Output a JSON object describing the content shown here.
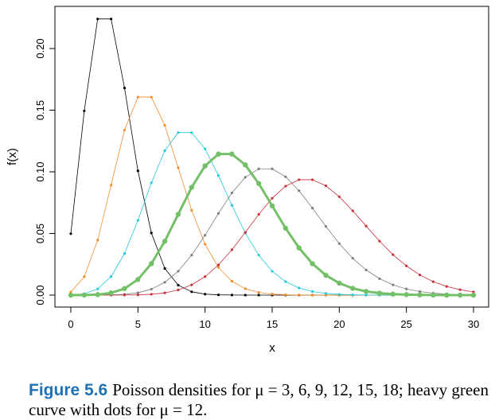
{
  "chart_data": {
    "type": "line",
    "title": "",
    "xlabel": "x",
    "ylabel": "f(x)",
    "xlim": [
      0,
      30
    ],
    "ylim": [
      0,
      0.23
    ],
    "x": [
      0,
      1,
      2,
      3,
      4,
      5,
      6,
      7,
      8,
      9,
      10,
      11,
      12,
      13,
      14,
      15,
      16,
      17,
      18,
      19,
      20,
      21,
      22,
      23,
      24,
      25,
      26,
      27,
      28,
      29,
      30
    ],
    "xticks": [
      0,
      5,
      10,
      15,
      20,
      25,
      30
    ],
    "xtick_labels": [
      "0",
      "5",
      "10",
      "15",
      "20",
      "25",
      "30"
    ],
    "yticks": [
      0.0,
      0.05,
      0.1,
      0.15,
      0.2
    ],
    "ytick_labels": [
      "0.00",
      "0.05",
      "0.10",
      "0.15",
      "0.20"
    ],
    "grid": false,
    "series": [
      {
        "name": "mu = 3",
        "mu": 3,
        "color": "#000000",
        "heavy": false,
        "values": [
          0.0498,
          0.1494,
          0.224,
          0.224,
          0.168,
          0.1008,
          0.0504,
          0.0216,
          0.0081,
          0.0027,
          0.0008,
          0.0002,
          0.0001,
          0,
          0,
          0,
          0,
          0,
          0,
          0,
          0,
          0,
          0,
          0,
          0,
          0,
          0,
          0,
          0,
          0,
          0
        ]
      },
      {
        "name": "mu = 6",
        "mu": 6,
        "color": "#f28e2b",
        "heavy": false,
        "values": [
          0.0025,
          0.0149,
          0.0446,
          0.0892,
          0.1339,
          0.1606,
          0.1606,
          0.1377,
          0.1033,
          0.0688,
          0.0413,
          0.0225,
          0.0113,
          0.0052,
          0.0022,
          0.0009,
          0.0003,
          0.0001,
          0,
          0,
          0,
          0,
          0,
          0,
          0,
          0,
          0,
          0,
          0,
          0,
          0
        ]
      },
      {
        "name": "mu = 9",
        "mu": 9,
        "color": "#22cbdd",
        "heavy": false,
        "values": [
          0.0001,
          0.0011,
          0.005,
          0.015,
          0.0337,
          0.0607,
          0.0911,
          0.1171,
          0.1318,
          0.1318,
          0.1186,
          0.097,
          0.0728,
          0.0504,
          0.0324,
          0.0194,
          0.0109,
          0.0058,
          0.0029,
          0.0014,
          0.0006,
          0.0003,
          0.0001,
          0,
          0,
          0,
          0,
          0,
          0,
          0,
          0
        ]
      },
      {
        "name": "mu = 12",
        "mu": 12,
        "color": "#74c069",
        "heavy": true,
        "values": [
          0,
          0.0001,
          0.0004,
          0.0018,
          0.0053,
          0.0127,
          0.0255,
          0.0437,
          0.0655,
          0.0874,
          0.1048,
          0.1144,
          0.1144,
          0.1056,
          0.0905,
          0.0724,
          0.0543,
          0.0383,
          0.0255,
          0.0161,
          0.0097,
          0.0055,
          0.003,
          0.0016,
          0.0008,
          0.0004,
          0.0002,
          0.0001,
          0,
          0,
          0
        ]
      },
      {
        "name": "mu = 15",
        "mu": 15,
        "color": "#7f7f7f",
        "heavy": false,
        "values": [
          0,
          0,
          0,
          0.0002,
          0.0006,
          0.0019,
          0.0048,
          0.0104,
          0.0194,
          0.0324,
          0.0486,
          0.0663,
          0.0829,
          0.0956,
          0.1024,
          0.1024,
          0.096,
          0.0847,
          0.0706,
          0.0557,
          0.0418,
          0.0299,
          0.0204,
          0.0133,
          0.0083,
          0.005,
          0.0029,
          0.0016,
          0.0009,
          0.0004,
          0.0002
        ]
      },
      {
        "name": "mu = 18",
        "mu": 18,
        "color": "#c8313b",
        "heavy": false,
        "values": [
          0,
          0,
          0,
          0,
          0.0001,
          0.0002,
          0.0007,
          0.0018,
          0.0042,
          0.0083,
          0.015,
          0.0245,
          0.0368,
          0.0509,
          0.0655,
          0.0786,
          0.0884,
          0.0936,
          0.0936,
          0.0887,
          0.0798,
          0.0684,
          0.056,
          0.0438,
          0.0328,
          0.0237,
          0.0164,
          0.0109,
          0.007,
          0.0044,
          0.0026
        ]
      }
    ]
  },
  "caption": {
    "label": "Figure 5.6",
    "text": "Poisson densities for μ = 3, 6, 9, 12, 15, 18; heavy green curve with dots for μ = 12."
  }
}
